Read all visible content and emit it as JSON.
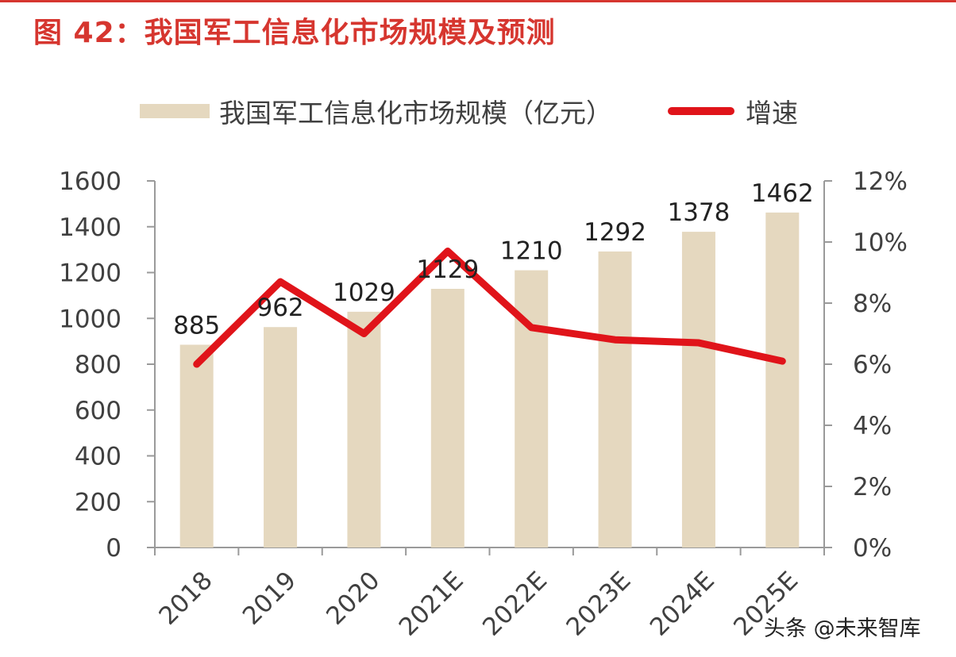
{
  "title": "图 42：我国军工信息化市场规模及预测",
  "watermark": "头条 @未来智库",
  "chart_data": {
    "type": "bar",
    "categories": [
      "2018",
      "2019",
      "2020",
      "2021E",
      "2022E",
      "2023E",
      "2024E",
      "2025E"
    ],
    "series": [
      {
        "name": "我国军工信息化市场规模（亿元）",
        "type": "bar",
        "axis": "left",
        "values": [
          885,
          962,
          1029,
          1129,
          1210,
          1292,
          1378,
          1462
        ],
        "color": "#e5d8bf"
      },
      {
        "name": "增速",
        "type": "line",
        "axis": "right",
        "values": [
          6.0,
          8.7,
          7.0,
          9.7,
          7.2,
          6.8,
          6.7,
          6.1
        ],
        "color": "#e0141a"
      }
    ],
    "y_left": {
      "min": 0,
      "max": 1600,
      "ticks": [
        "0",
        "200",
        "400",
        "600",
        "800",
        "1000",
        "1200",
        "1400",
        "1600"
      ]
    },
    "y_right": {
      "min": 0,
      "max": 12,
      "ticks": [
        "0%",
        "2%",
        "4%",
        "6%",
        "8%",
        "10%",
        "12%"
      ]
    },
    "legend_position": "top",
    "grid": false
  }
}
